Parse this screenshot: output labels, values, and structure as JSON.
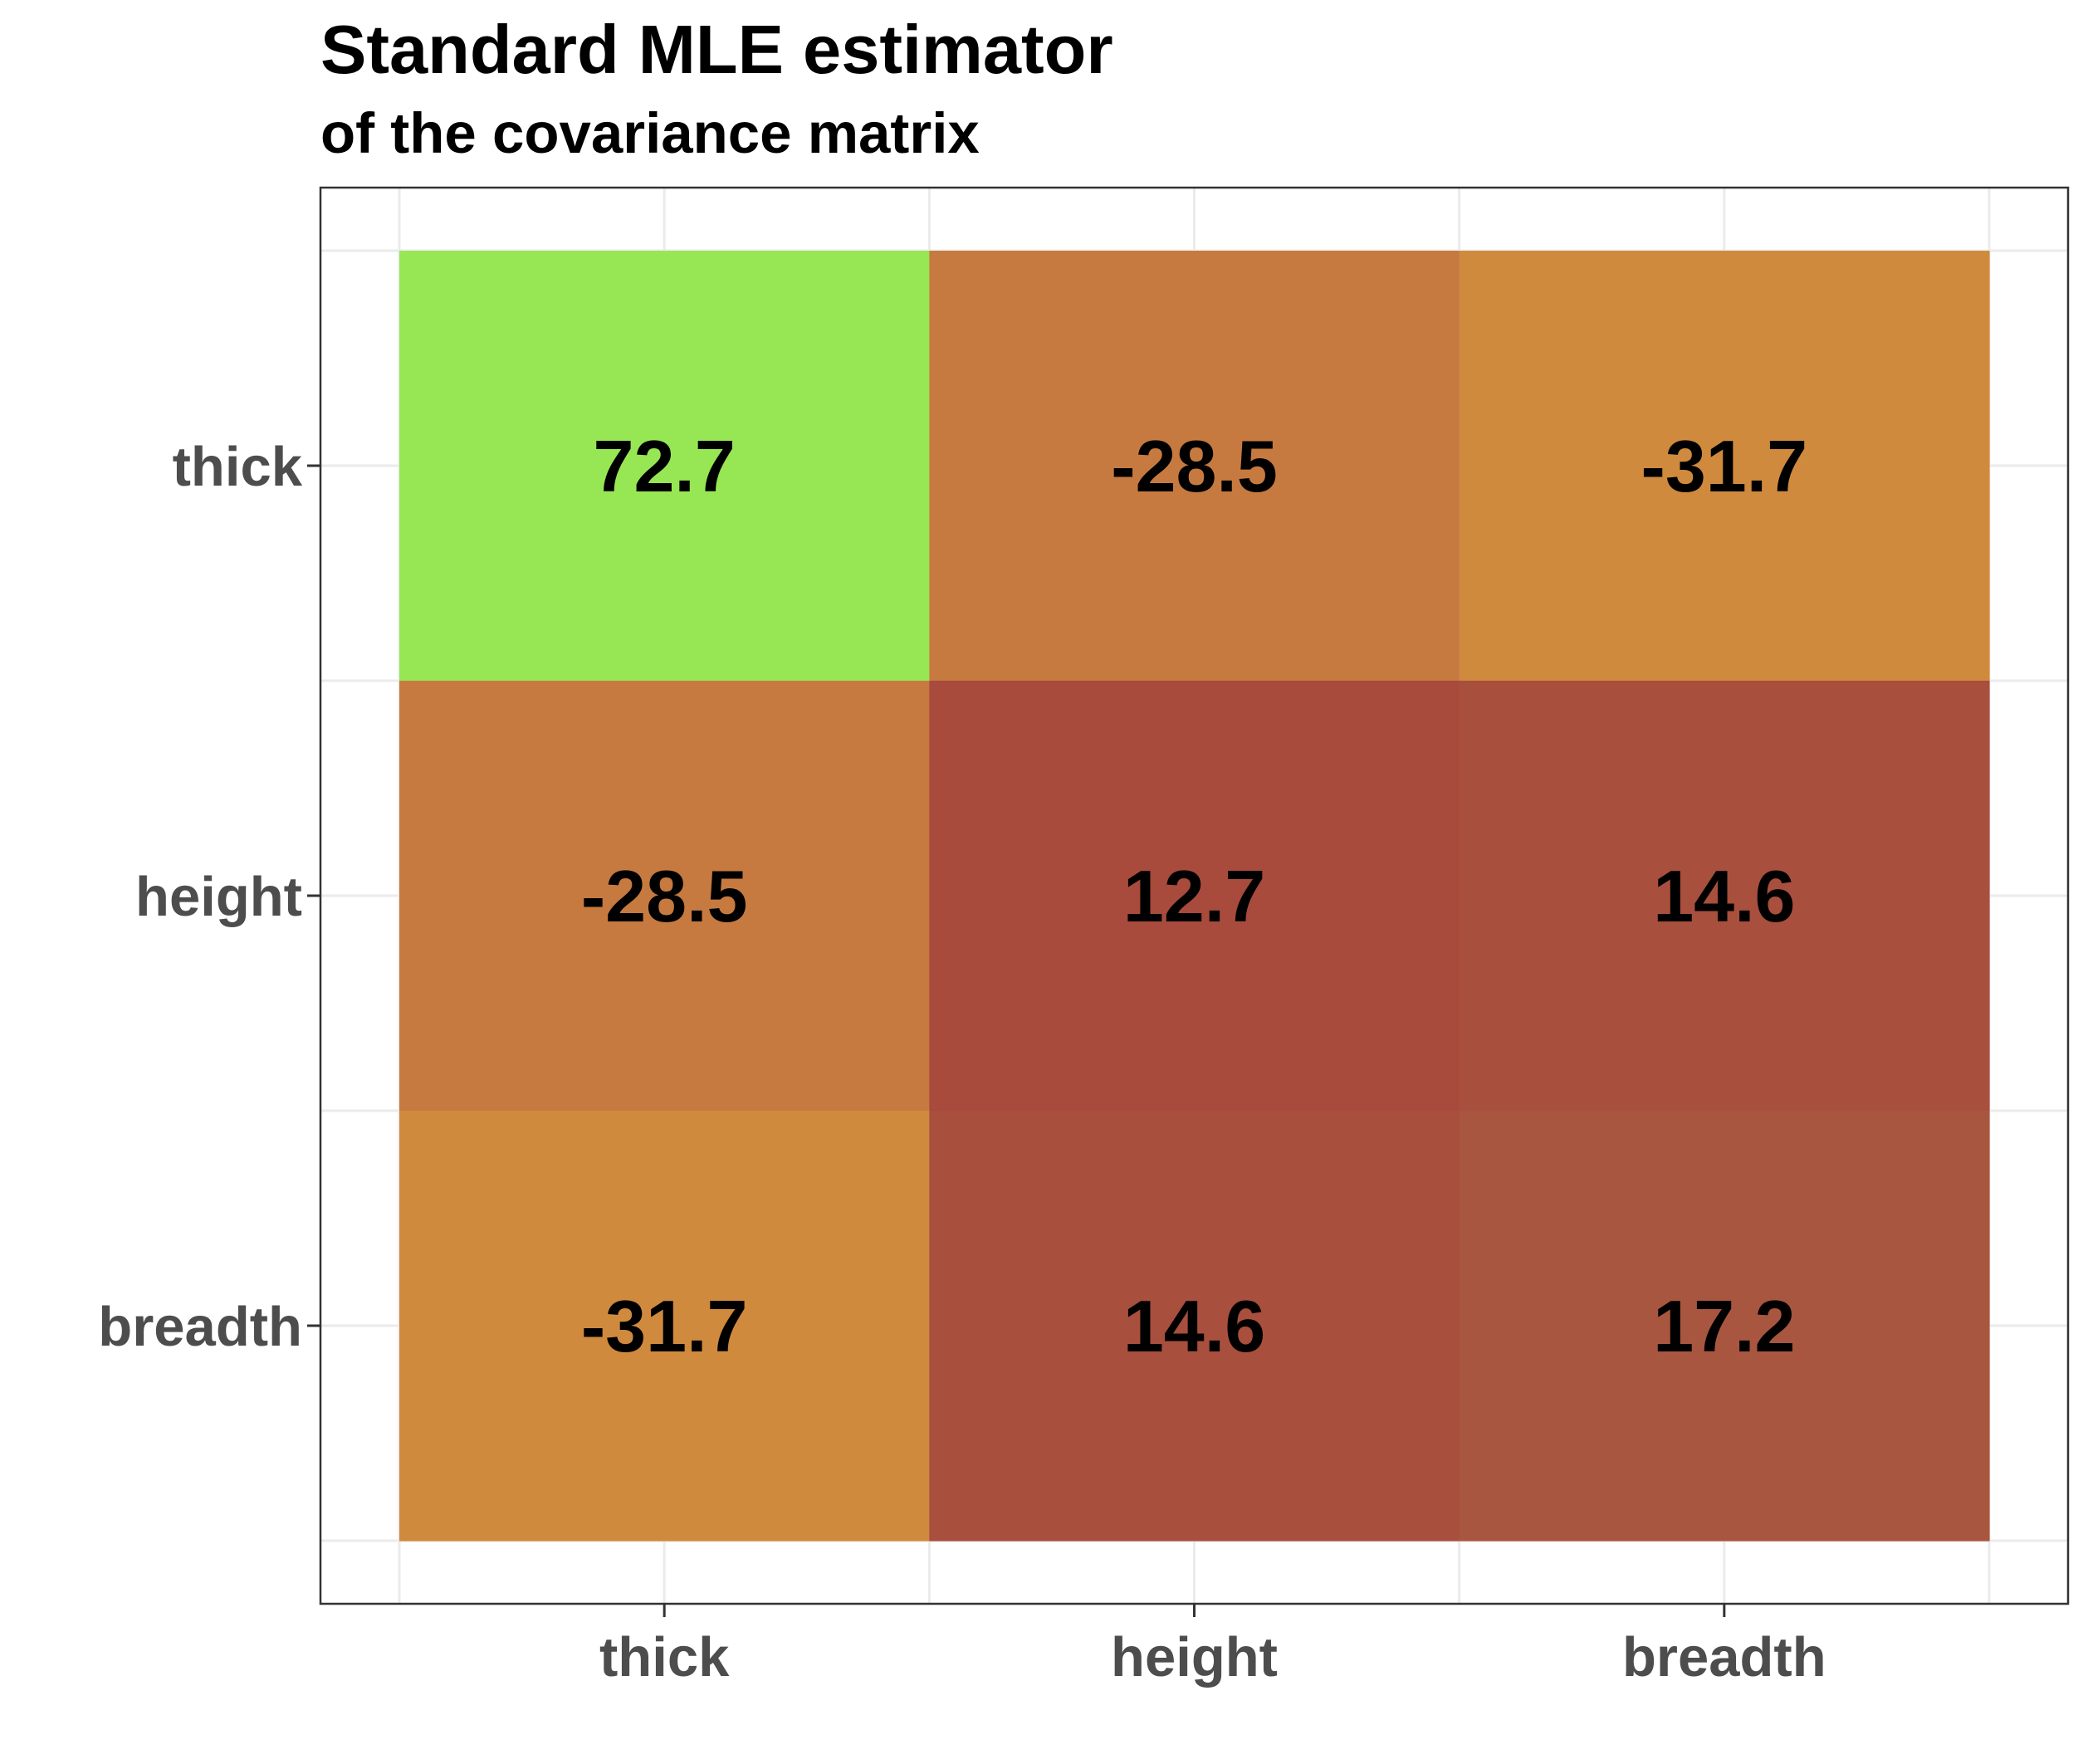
{
  "chart_data": {
    "type": "heatmap",
    "title": "Standard MLE estimator",
    "subtitle": "of the covariance matrix",
    "xlabel": "",
    "ylabel": "",
    "x_categories": [
      "thick",
      "height",
      "breadth"
    ],
    "y_categories": [
      "thick",
      "height",
      "breadth"
    ],
    "values": [
      [
        72.7,
        -28.5,
        -31.7
      ],
      [
        -28.5,
        12.7,
        14.6
      ],
      [
        -31.7,
        14.6,
        17.2
      ]
    ],
    "cell_labels": [
      [
        "72.7",
        "-28.5",
        "-31.7"
      ],
      [
        "-28.5",
        "12.7",
        "14.6"
      ],
      [
        "-31.7",
        "14.6",
        "17.2"
      ]
    ],
    "color_scale": {
      "low_color": "#a84a3c",
      "mid_color": "#d08a3e",
      "high_color": "#97e755",
      "low_value": 12.7,
      "mid_value": -31.7,
      "high_value": 72.7
    },
    "legend": "none",
    "grid": true
  }
}
